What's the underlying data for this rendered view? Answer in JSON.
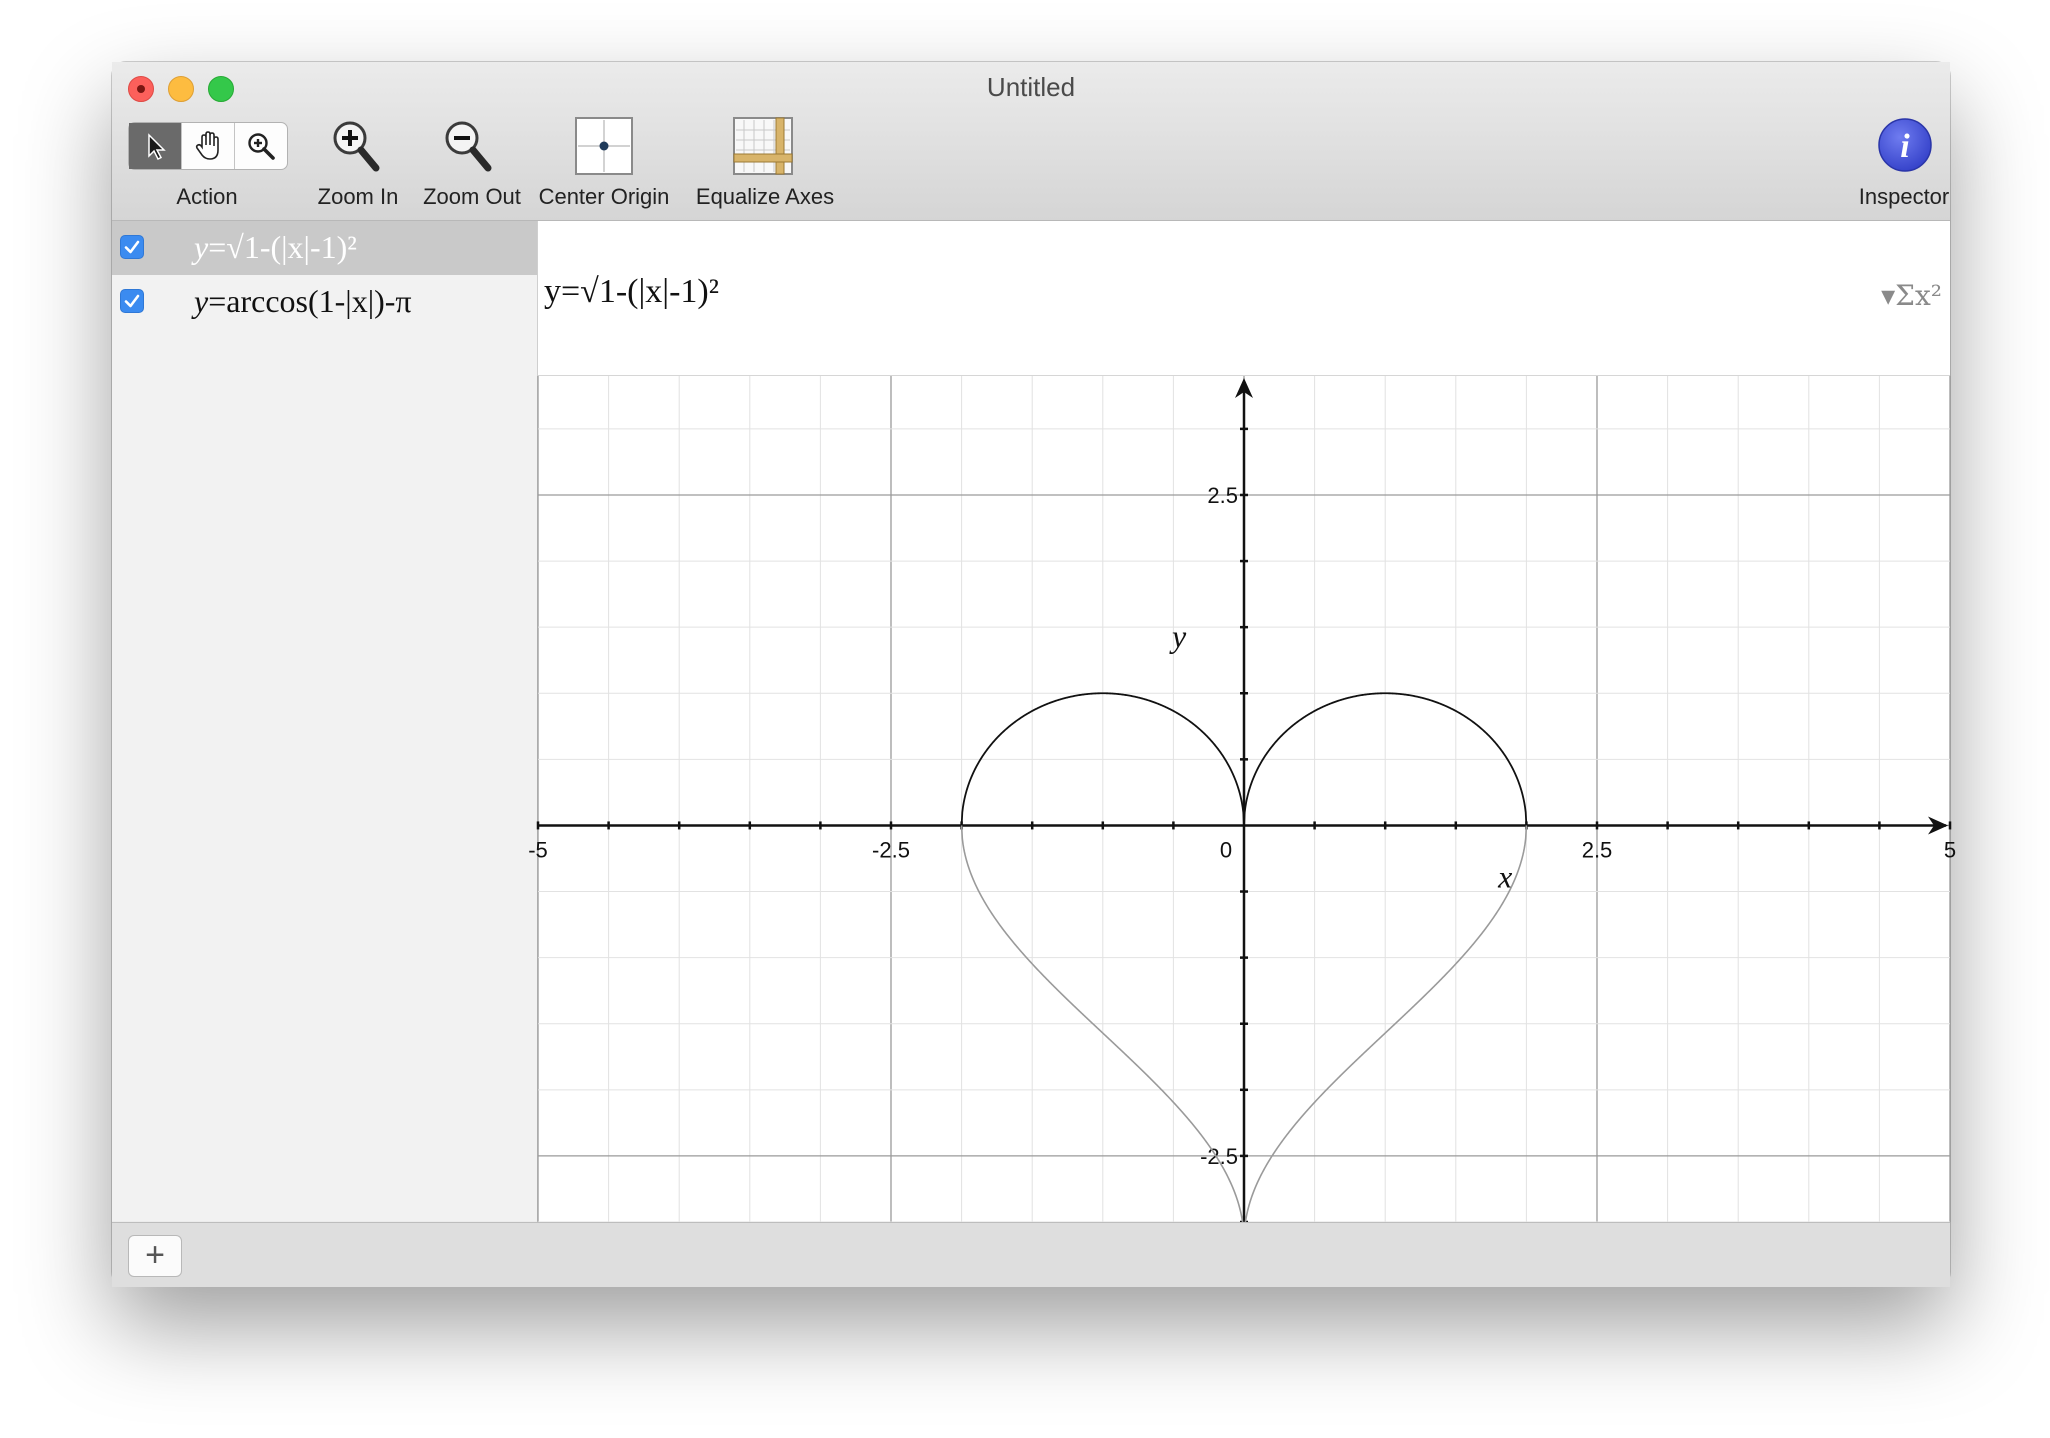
{
  "window": {
    "title": "Untitled"
  },
  "toolbar": {
    "action_label": "Action",
    "zoom_in_label": "Zoom In",
    "zoom_out_label": "Zoom Out",
    "center_origin_label": "Center Origin",
    "equalize_axes_label": "Equalize Axes",
    "inspector_label": "Inspector",
    "inspector_glyph": "i"
  },
  "equations": [
    {
      "y": "y",
      "eq": "=",
      "rest": "√1-(|x|-1)²",
      "checked": true,
      "selected": true
    },
    {
      "y": "y",
      "eq": "=",
      "rest": "arccos(1-|x|)-π",
      "checked": true,
      "selected": false
    }
  ],
  "editor": {
    "formula": "y=√1-(|x|-1)²",
    "sigma": "▾Σx²"
  },
  "bottom": {
    "add_label": "+"
  },
  "chart_data": {
    "type": "line",
    "xlim": [
      -5,
      5
    ],
    "ylim": [
      -3.0,
      3.4
    ],
    "x_ticks": [
      "-5",
      "-2.5",
      "0",
      "2.5",
      "5"
    ],
    "y_ticks": [
      "2.5",
      "-2.5"
    ],
    "xlabel": "x",
    "ylabel": "y",
    "grid": true,
    "series": [
      {
        "name": "y=√1-(|x|-1)²",
        "color": "#111111"
      },
      {
        "name": "y=arccos(1-|x|)-π",
        "color": "#9a9a9a"
      }
    ]
  }
}
